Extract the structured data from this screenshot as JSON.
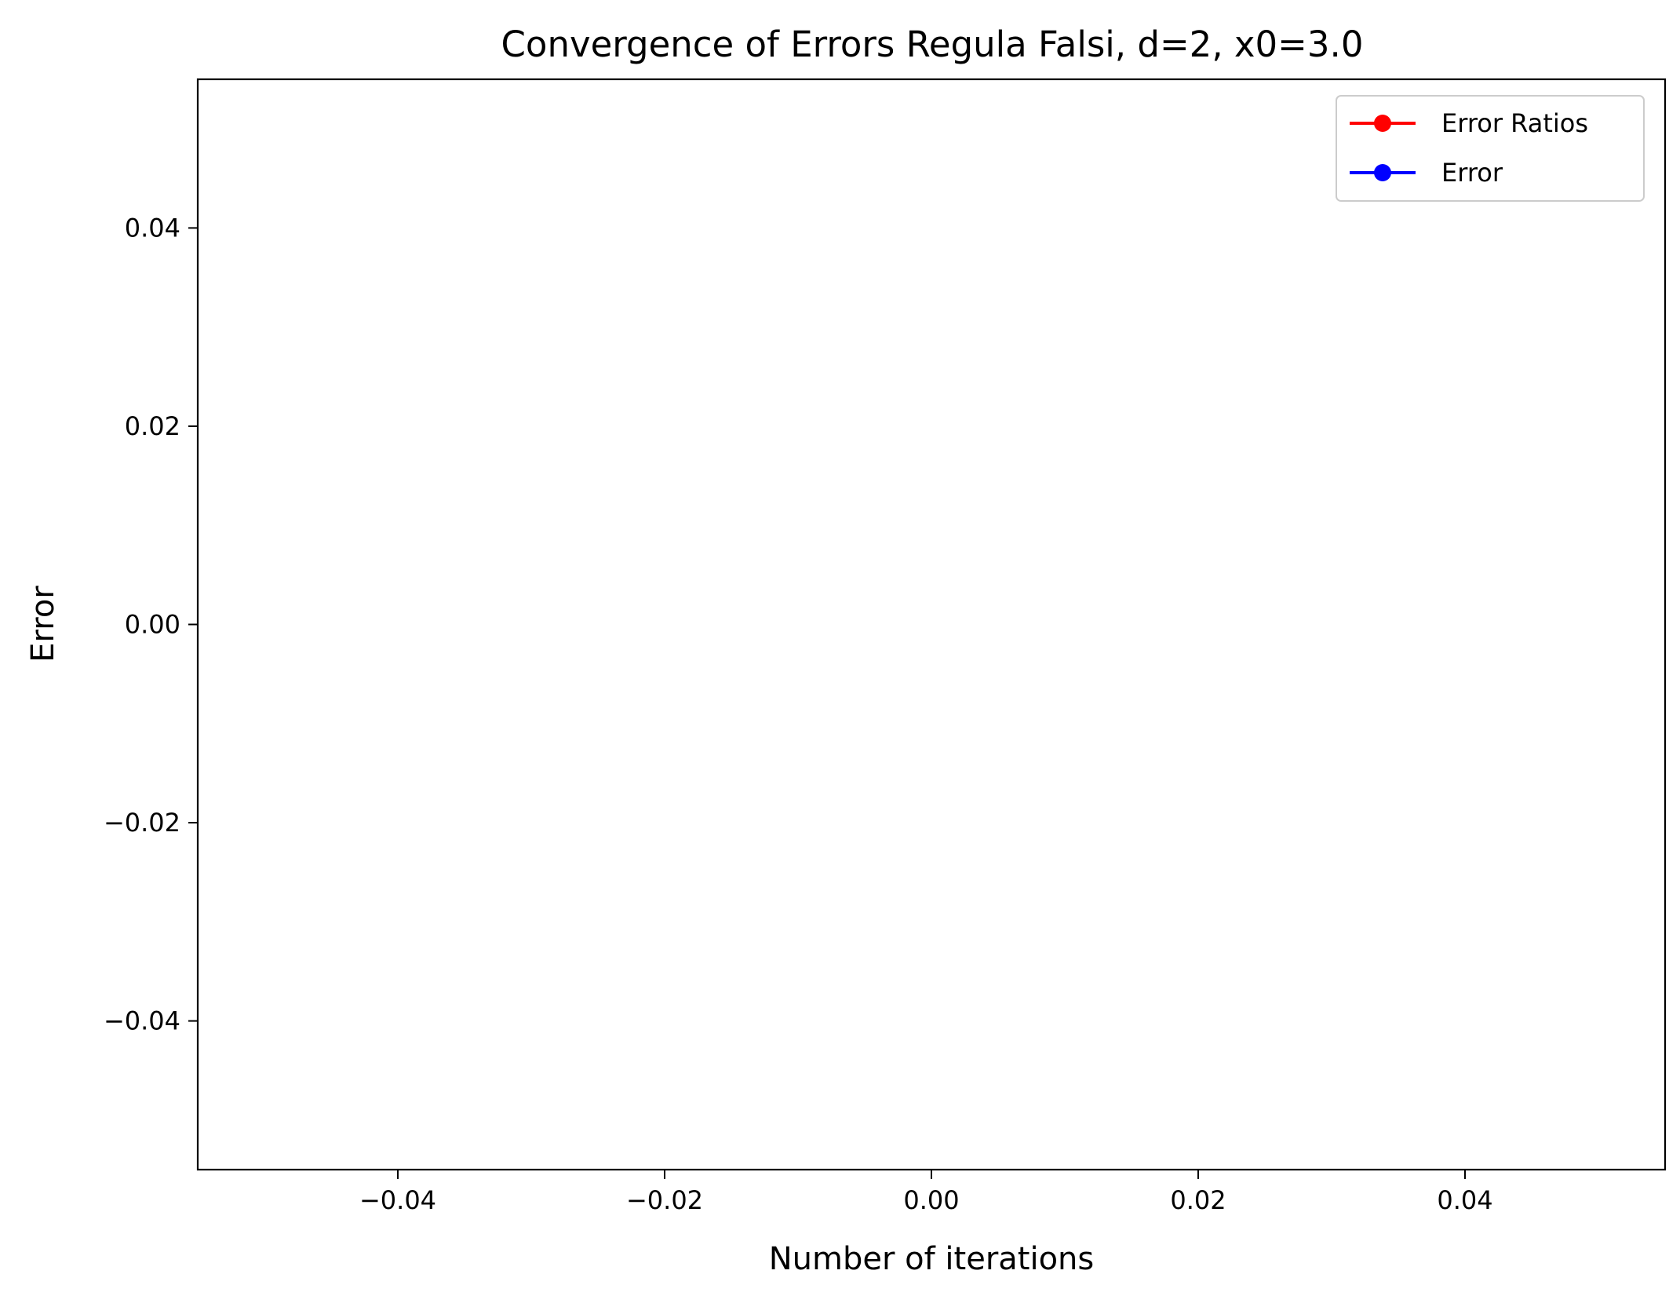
{
  "chart_data": {
    "type": "line",
    "title": "Convergence of Errors Regula Falsi, d=2, x0=3.0",
    "xlabel": "Number of iterations",
    "ylabel": "Error",
    "xlim": [
      -0.055,
      0.055
    ],
    "ylim": [
      -0.055,
      0.055
    ],
    "xticks": [
      -0.04,
      -0.02,
      0.0,
      0.02,
      0.04
    ],
    "yticks": [
      -0.04,
      -0.02,
      0.0,
      0.02,
      0.04
    ],
    "xtick_labels": [
      "−0.04",
      "−0.02",
      "0.00",
      "0.02",
      "0.04"
    ],
    "ytick_labels": [
      "−0.04",
      "−0.02",
      "0.00",
      "0.02",
      "0.04"
    ],
    "grid": false,
    "legend_position": "upper right",
    "series": [
      {
        "name": "Error Ratios",
        "color": "#ff0000",
        "marker": "circle",
        "x": [],
        "y": []
      },
      {
        "name": "Error",
        "color": "#0000ff",
        "marker": "circle",
        "x": [],
        "y": []
      }
    ]
  }
}
